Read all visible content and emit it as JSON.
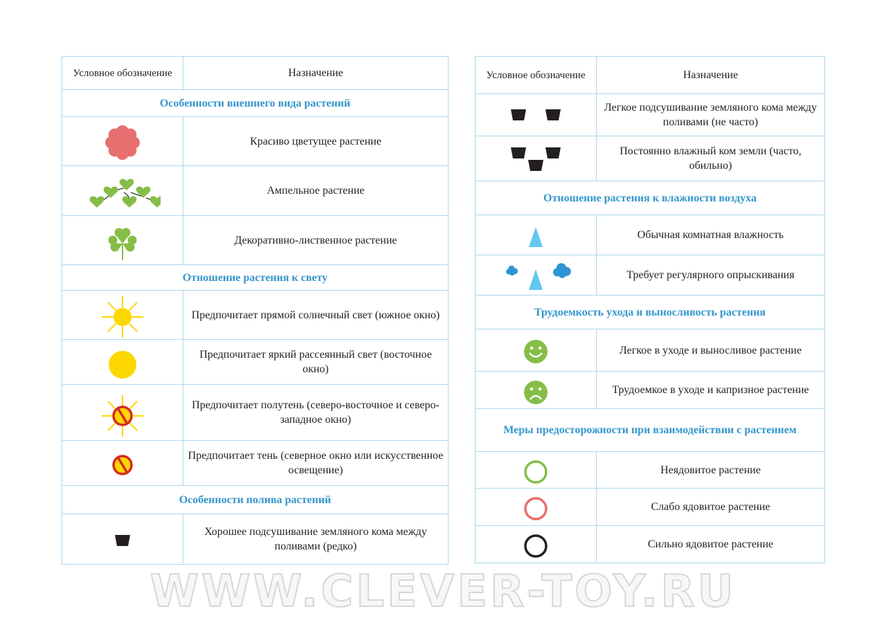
{
  "watermark": "WWW.CLEVER-TOY.RU",
  "colors": {
    "border": "#a9d9ec",
    "section": "#3596cc",
    "flower": "#e76f6f",
    "green": "#86bd48",
    "sun": "#fcd700",
    "prohibit": "#d52a24",
    "drop": "#63c7ef",
    "cloud": "#2e95d4"
  },
  "left": {
    "header": {
      "symbol": "Условное обозначение",
      "meaning": "Назначение"
    },
    "rows": [
      {
        "section": "Особенности внешнего вида растений"
      },
      {
        "icon": "flower-icon",
        "text": "Красиво цветущее растение"
      },
      {
        "icon": "ampel-hearts-icon",
        "text": "Ампельное растение"
      },
      {
        "icon": "clover-icon",
        "text": "Декоративно-лиственное растение"
      },
      {
        "section": "Отношение растения к свету"
      },
      {
        "icon": "sun-rays-icon",
        "text": "Предпочитает прямой солнечный свет (южное окно)"
      },
      {
        "icon": "sun-disc-icon",
        "text": "Предпочитает яркий рассеянный свет (восточное окно)"
      },
      {
        "icon": "sun-rays-prohibited-icon",
        "text": "Предпочитает полутень (северо-восточное и северо-западное окно)"
      },
      {
        "icon": "sun-prohibited-icon",
        "text": "Предпочитает тень (северное окно или искусственное освещение)"
      },
      {
        "section": "Особенности полива растений"
      },
      {
        "icon": "pot-one-icon",
        "text": "Хорошее подсушивание земляного кома между поливами (редко)"
      }
    ]
  },
  "right": {
    "header": {
      "symbol": "Условное обозначение",
      "meaning": "Назначение"
    },
    "rows": [
      {
        "icon": "pot-two-icon",
        "text": "Легкое подсушивание земляного кома между поливами (не часто)"
      },
      {
        "icon": "pot-three-icon",
        "text": "Постоянно влажный ком земли (часто, обильно)"
      },
      {
        "section": "Отношение растения к влажности воздуха"
      },
      {
        "icon": "drop-icon",
        "text": "Обычная комнатная влажность"
      },
      {
        "icon": "drop-clouds-icon",
        "text": "Требует регулярного опрыскивания"
      },
      {
        "section": "Трудоемкость ухода и выносливость растения"
      },
      {
        "icon": "smile-icon",
        "text": "Легкое в уходе и выносливое растение"
      },
      {
        "icon": "sad-icon",
        "text": "Трудоемкое в уходе и капризное растение"
      },
      {
        "section": "Меры предосторожности при взаимодействии с растением"
      },
      {
        "icon": "green-ring-icon",
        "text": "Неядовитое растение"
      },
      {
        "icon": "pink-ring-icon",
        "text": "Слабо ядовитое растение"
      },
      {
        "icon": "black-ring-icon",
        "text": "Сильно ядовитое растение"
      }
    ]
  }
}
